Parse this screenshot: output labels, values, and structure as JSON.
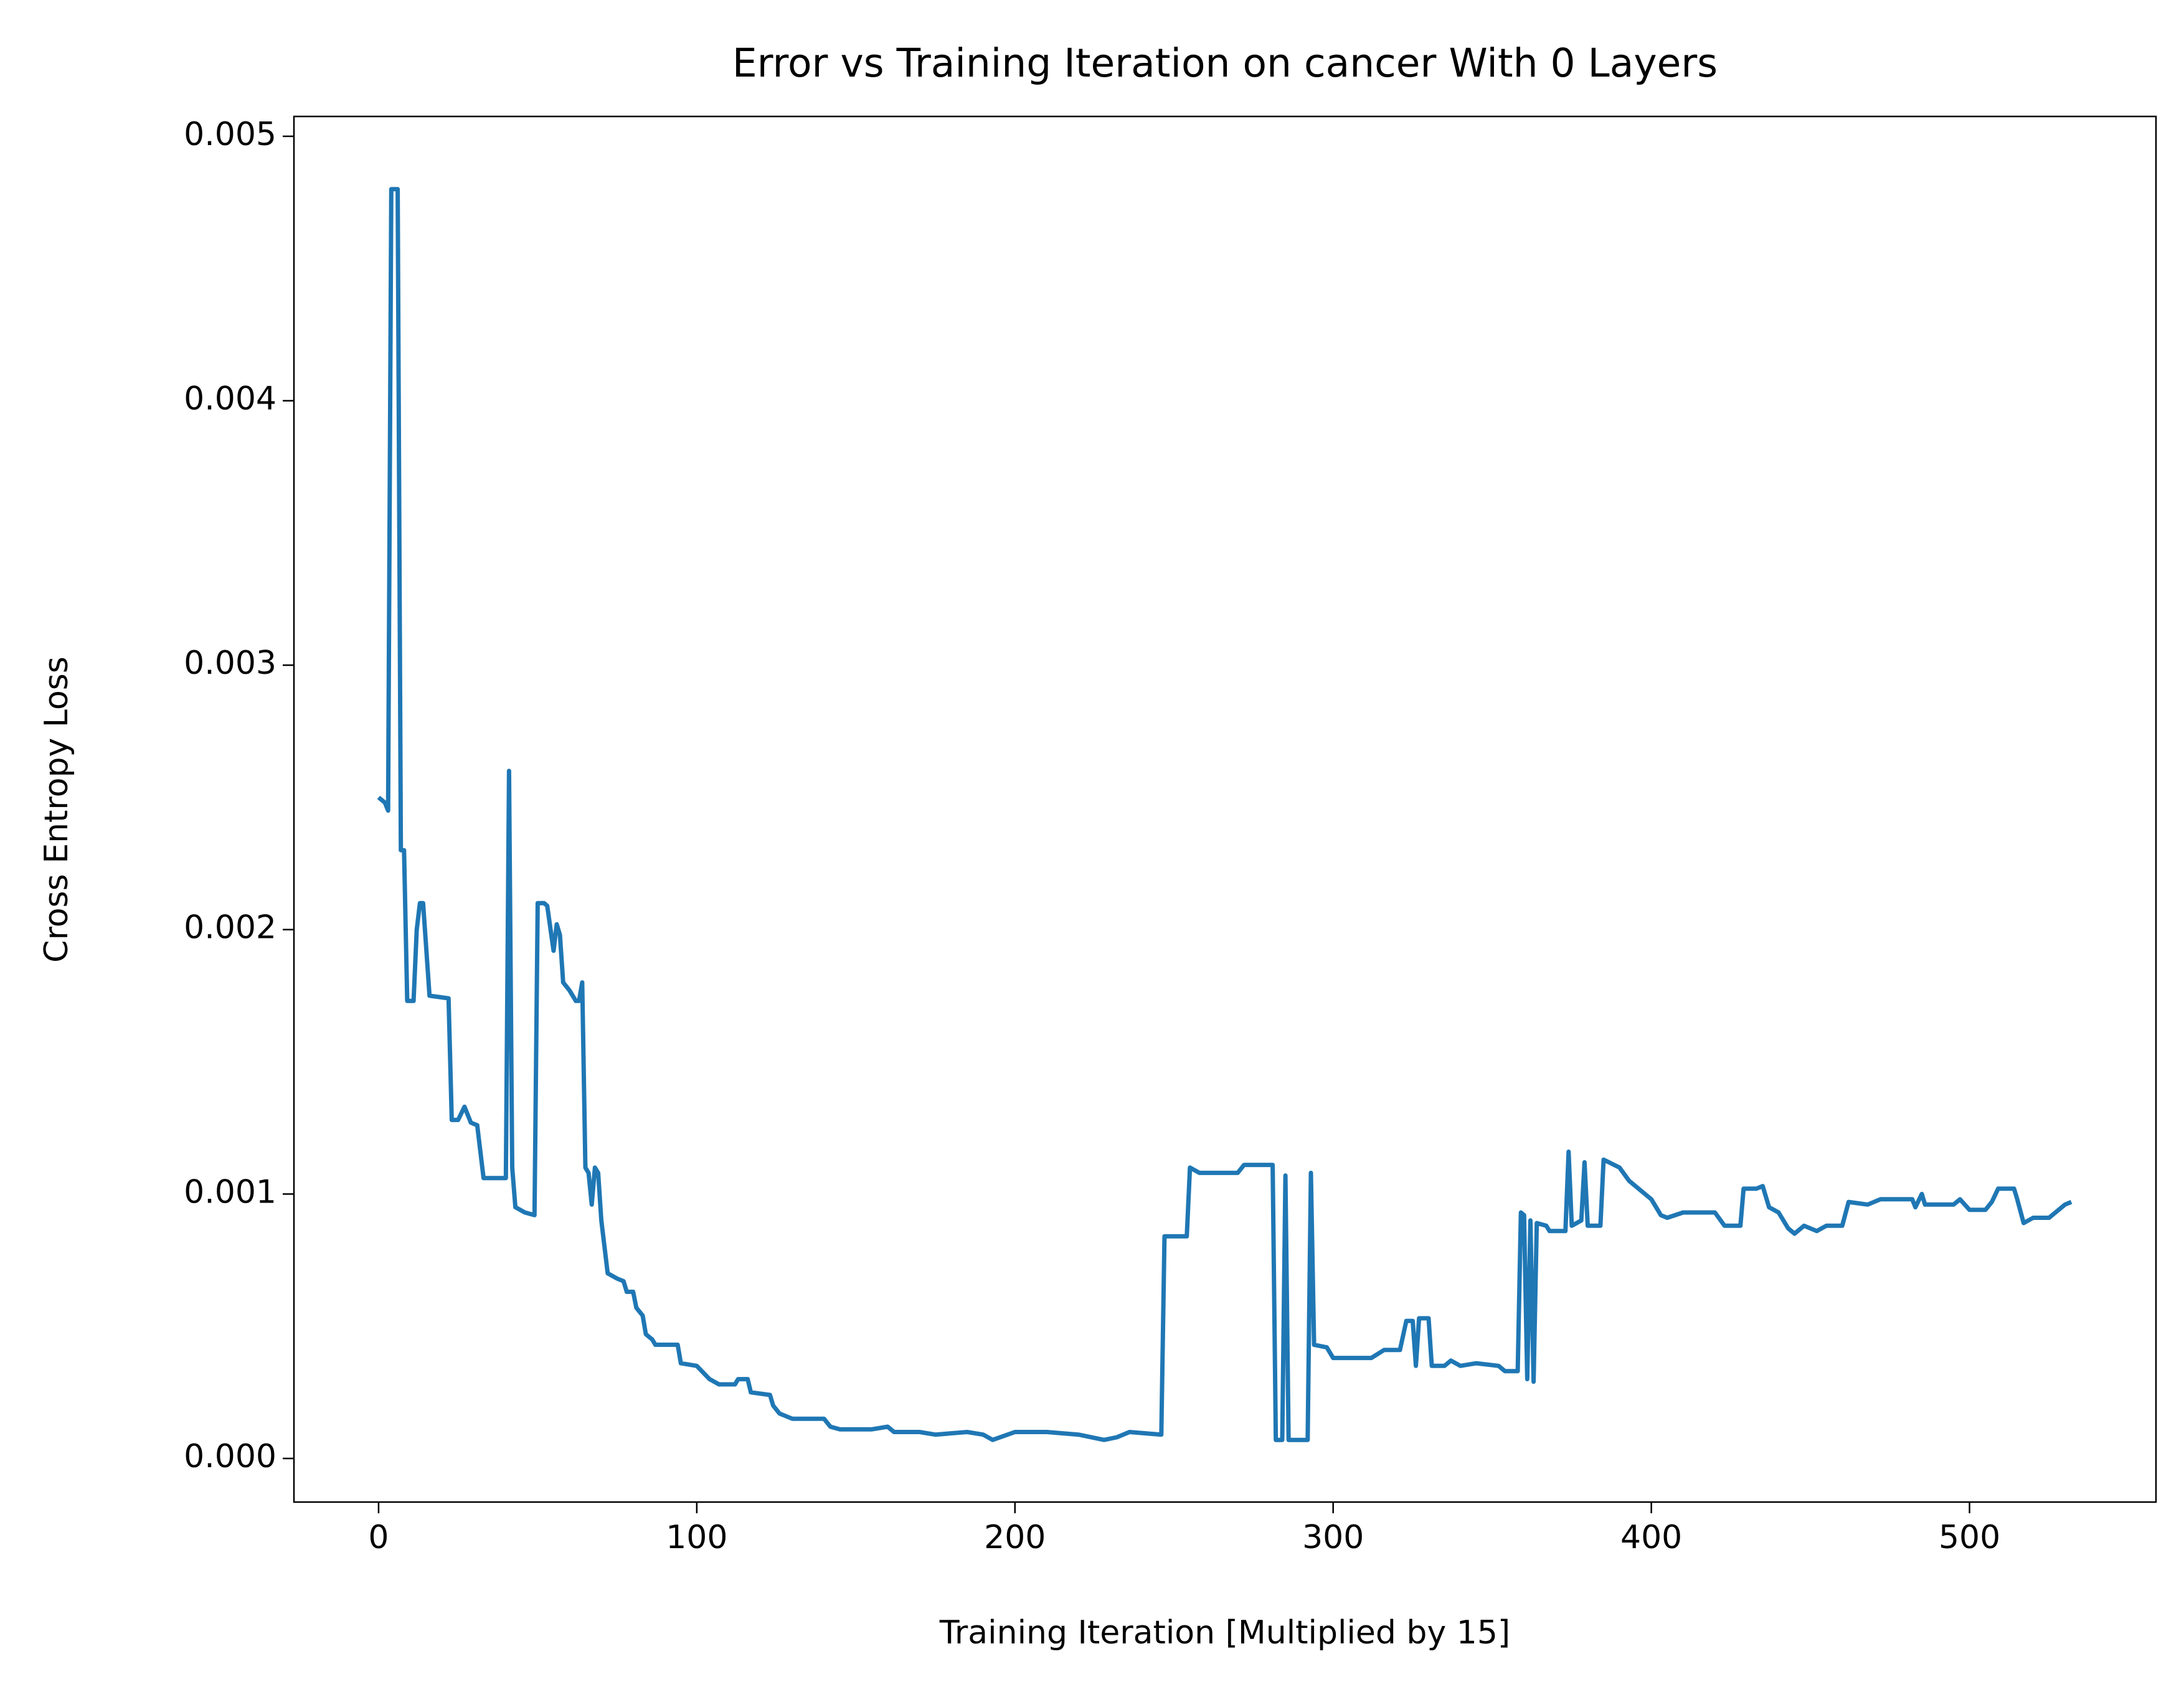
{
  "chart_data": {
    "type": "line",
    "title": "Error vs Training Iteration on cancer With 0 Layers",
    "x_label": "Training Iteration [Multiplied by 15]",
    "y_label": "Cross Entropy Loss",
    "xlim": [
      -26.6,
      558.6
    ],
    "ylim": [
      -0.000165,
      0.005075
    ],
    "xticks": [
      0,
      100,
      200,
      300,
      400,
      500
    ],
    "yticks": [
      {
        "value": 0,
        "label": "0.000"
      },
      {
        "value": 0.001,
        "label": "0.001"
      },
      {
        "value": 0.002,
        "label": "0.002"
      },
      {
        "value": 0.003,
        "label": "0.003"
      },
      {
        "value": 0.004,
        "label": "0.004"
      },
      {
        "value": 0.005,
        "label": "0.005"
      }
    ],
    "series": [
      {
        "color": "#1f77b4",
        "x": [
          0,
          2,
          3,
          4,
          6,
          7,
          8,
          9,
          11,
          12,
          13,
          14,
          16,
          22,
          23,
          25,
          27,
          29,
          31,
          33,
          40,
          41,
          42,
          43,
          46,
          49,
          50,
          52,
          53,
          55,
          56,
          57,
          58,
          60,
          62,
          63,
          64,
          65,
          66,
          67,
          68,
          69,
          70,
          71,
          72,
          75,
          77,
          78,
          80,
          81,
          83,
          84,
          86,
          87,
          94,
          95,
          100,
          104,
          107,
          112,
          113,
          116,
          117,
          123,
          124,
          126,
          130,
          140,
          142,
          145,
          155,
          160,
          162,
          170,
          175,
          185,
          190,
          193,
          200,
          210,
          220,
          228,
          232,
          236,
          246,
          247,
          254,
          255,
          258,
          270,
          272,
          281,
          282,
          284,
          285,
          286,
          292,
          293,
          294,
          298,
          300,
          312,
          316,
          321,
          323,
          325,
          326,
          327,
          330,
          331,
          335,
          337,
          340,
          345,
          352,
          354,
          358,
          359,
          360,
          361,
          362,
          363,
          364,
          367,
          368,
          373,
          374,
          375,
          378,
          379,
          380,
          384,
          385,
          390,
          393,
          395,
          400,
          403,
          405,
          410,
          420,
          423,
          428,
          429,
          433,
          435,
          437,
          440,
          443,
          445,
          448,
          452,
          455,
          460,
          462,
          468,
          472,
          482,
          483,
          485,
          486,
          495,
          497,
          500,
          505,
          507,
          509,
          514,
          515,
          517,
          520,
          525,
          530,
          532
        ],
        "values": [
          0.0025,
          0.00248,
          0.00245,
          0.0048,
          0.0048,
          0.0023,
          0.0023,
          0.00173,
          0.00173,
          0.002,
          0.0021,
          0.0021,
          0.00175,
          0.00174,
          0.00128,
          0.00128,
          0.00133,
          0.00127,
          0.00126,
          0.00106,
          0.00106,
          0.0026,
          0.0011,
          0.00095,
          0.00093,
          0.00092,
          0.0021,
          0.0021,
          0.00209,
          0.00192,
          0.00202,
          0.00198,
          0.0018,
          0.00177,
          0.00173,
          0.00173,
          0.0018,
          0.0011,
          0.00108,
          0.00096,
          0.0011,
          0.00108,
          0.0009,
          0.0008,
          0.0007,
          0.00068,
          0.00067,
          0.00063,
          0.00063,
          0.00057,
          0.00054,
          0.00047,
          0.00045,
          0.00043,
          0.00043,
          0.00036,
          0.00035,
          0.0003,
          0.00028,
          0.00028,
          0.0003,
          0.0003,
          0.00025,
          0.00024,
          0.0002,
          0.00017,
          0.00015,
          0.00015,
          0.00012,
          0.00011,
          0.00011,
          0.00012,
          0.0001,
          0.0001,
          9e-05,
          0.0001,
          9e-05,
          7e-05,
          0.0001,
          0.0001,
          9e-05,
          7e-05,
          8e-05,
          0.0001,
          9e-05,
          0.00084,
          0.00084,
          0.0011,
          0.00108,
          0.00108,
          0.00111,
          0.00111,
          7e-05,
          7e-05,
          0.00107,
          7e-05,
          7e-05,
          0.00108,
          0.00043,
          0.00042,
          0.00038,
          0.00038,
          0.00041,
          0.00041,
          0.00052,
          0.00052,
          0.00035,
          0.00053,
          0.00053,
          0.00035,
          0.00035,
          0.00037,
          0.00035,
          0.00036,
          0.00035,
          0.00033,
          0.00033,
          0.00093,
          0.00092,
          0.0003,
          0.0009,
          0.00029,
          0.00089,
          0.00088,
          0.00086,
          0.00086,
          0.00116,
          0.00088,
          0.0009,
          0.00112,
          0.00088,
          0.00088,
          0.00113,
          0.0011,
          0.00105,
          0.00103,
          0.00098,
          0.00092,
          0.00091,
          0.00093,
          0.00093,
          0.00088,
          0.00088,
          0.00102,
          0.00102,
          0.00103,
          0.00095,
          0.00093,
          0.00087,
          0.00085,
          0.00088,
          0.00086,
          0.00088,
          0.00088,
          0.00097,
          0.00096,
          0.00098,
          0.00098,
          0.00095,
          0.001,
          0.00096,
          0.00096,
          0.00098,
          0.00094,
          0.00094,
          0.00097,
          0.00102,
          0.00102,
          0.00098,
          0.00089,
          0.00091,
          0.00091,
          0.00096,
          0.00097
        ]
      }
    ]
  }
}
